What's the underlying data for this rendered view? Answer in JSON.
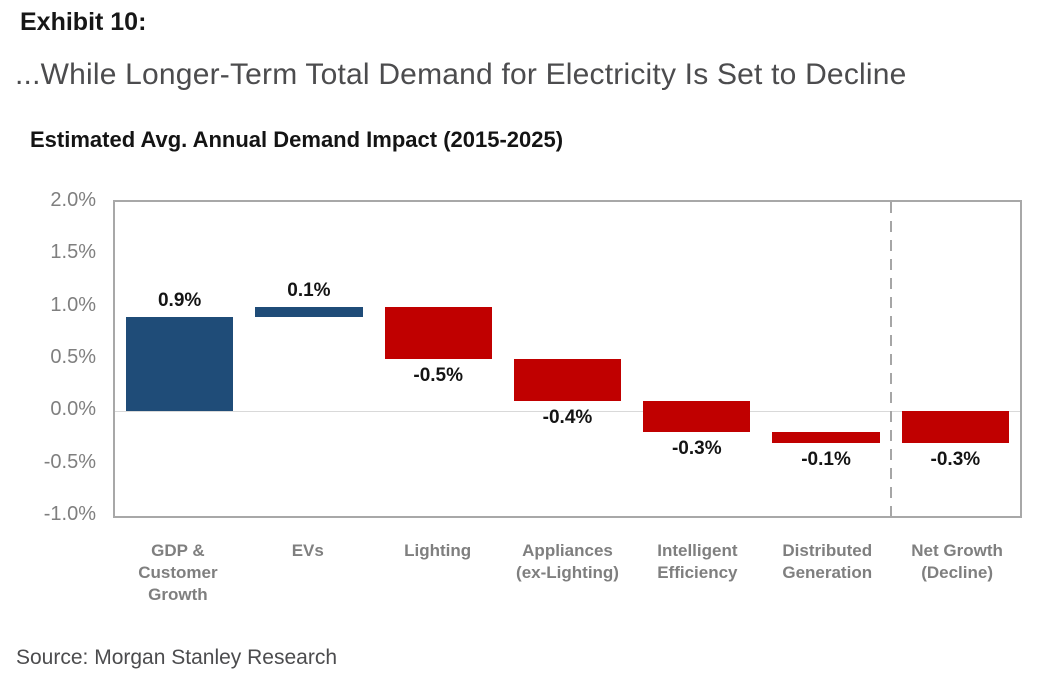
{
  "header": {
    "exhibit": "Exhibit 10:",
    "subtitle": "...While Longer-Term Total Demand for Electricity Is Set to Decline"
  },
  "chart_data": {
    "type": "bar",
    "subtype": "waterfall",
    "title": "Estimated Avg. Annual Demand Impact (2015-2025)",
    "xlabel": "",
    "ylabel": "",
    "ylim": [
      -1.0,
      2.0
    ],
    "ytick_labels": [
      "2.0%",
      "1.5%",
      "1.0%",
      "0.5%",
      "0.0%",
      "-0.5%",
      "-1.0%"
    ],
    "grid": "zero-line-only",
    "legend": "none",
    "separator_before_index": 6,
    "bar_width_fraction": 0.83,
    "categories": [
      "GDP &\nCustomer\nGrowth",
      "EVs",
      "Lighting",
      "Appliances\n(ex-Lighting)",
      "Intelligent\nEfficiency",
      "Distributed\nGeneration",
      "Net Growth\n(Decline)"
    ],
    "bars": [
      {
        "category": "GDP & Customer Growth",
        "value": 0.9,
        "label": "0.9%",
        "total": false
      },
      {
        "category": "EVs",
        "value": 0.1,
        "label": "0.1%",
        "total": false
      },
      {
        "category": "Lighting",
        "value": -0.5,
        "label": "-0.5%",
        "total": false
      },
      {
        "category": "Appliances (ex-Lighting)",
        "value": -0.4,
        "label": "-0.4%",
        "total": false
      },
      {
        "category": "Intelligent Efficiency",
        "value": -0.3,
        "label": "-0.3%",
        "total": false
      },
      {
        "category": "Distributed Generation",
        "value": -0.1,
        "label": "-0.1%",
        "total": false
      },
      {
        "category": "Net Growth (Decline)",
        "value": -0.3,
        "label": "-0.3%",
        "total": true
      }
    ],
    "colors": {
      "positive": "#1f4c78",
      "negative": "#c00000",
      "gridline": "#d9d9d9",
      "axis_border": "#a8a8a8",
      "separator": "#a6a6a6",
      "tick_text": "#7f7f7f",
      "category_text": "#7f7f7f",
      "label_text": "#141414"
    }
  },
  "footer": {
    "source": "Source: Morgan Stanley Research"
  }
}
